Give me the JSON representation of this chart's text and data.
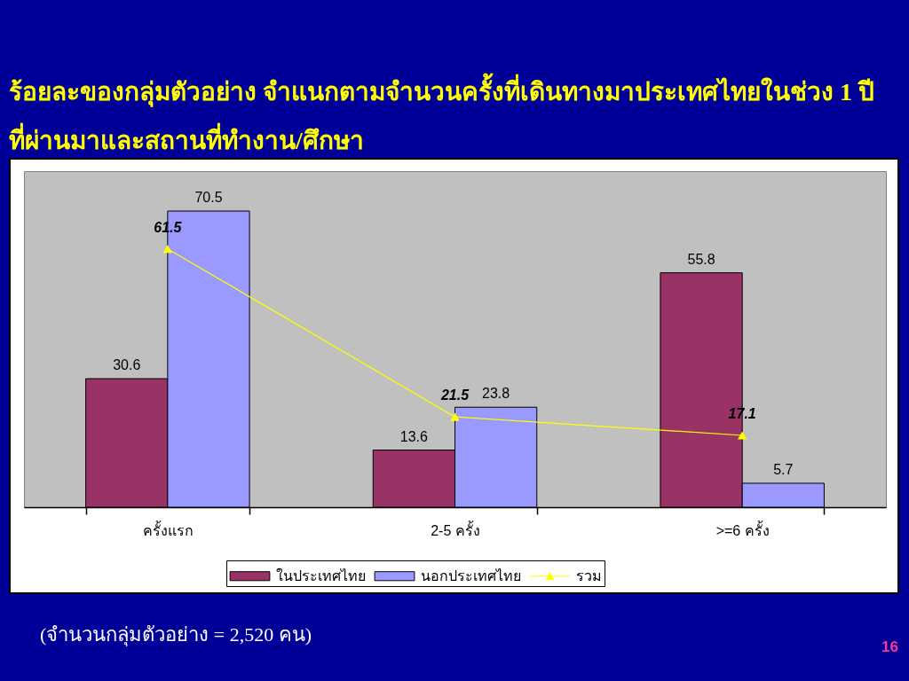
{
  "chart_data": {
    "type": "bar",
    "title": "ร้อยละของกลุ่มตัวอย่าง จำแนกตามจำนวนครั้งที่เดินทางมาประเทศไทยในช่วง 1 ปีที่ผ่านมาและสถานที่ทำงาน/ศึกษา",
    "categories": [
      "ครั้งแรก",
      "2-5 ครั้ง",
      ">=6 ครั้ง"
    ],
    "series": [
      {
        "name": "ในประเทศไทย",
        "color": "#993366",
        "values": [
          30.6,
          13.6,
          55.8
        ]
      },
      {
        "name": "นอกประเทศไทย",
        "color": "#9999ff",
        "values": [
          70.5,
          23.8,
          5.7
        ]
      },
      {
        "name": "รวม",
        "type": "line",
        "color": "#ffff00",
        "values": [
          61.5,
          21.5,
          17.1
        ]
      }
    ],
    "data_labels": true,
    "legend": "bottom",
    "marker": "triangle",
    "annotations": [
      "(จำนวนกลุ่มตัวอย่าง = 2,520 คน)",
      "16"
    ]
  }
}
